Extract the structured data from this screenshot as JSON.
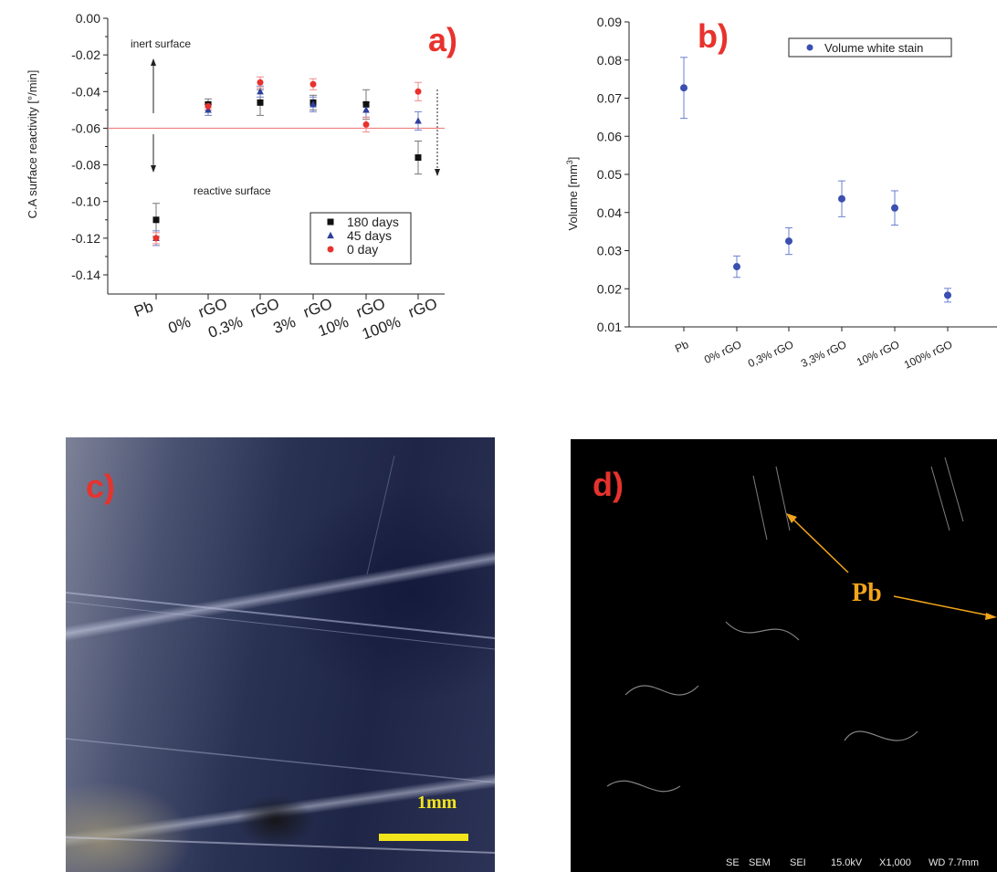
{
  "panels": {
    "a": "a)",
    "b": "b)",
    "c": "c)",
    "d": "d)"
  },
  "chart_data": [
    {
      "type": "scatter",
      "ylabel": "C.A surface reactivity [°/min]",
      "ylim": [
        -0.14,
        0.0
      ],
      "yticks": [
        "0.00",
        "-0.02",
        "-0.04",
        "-0.06",
        "-0.08",
        "-0.10",
        "-0.12",
        "-0.14"
      ],
      "categories": [
        "Pb",
        "0% rGO",
        "0.3% rGO",
        "3% rGO",
        "10% rGO",
        "100% rGO"
      ],
      "series": [
        {
          "name": "180 days",
          "color": "#111111",
          "marker": "square",
          "values": [
            -0.11,
            -0.047,
            -0.046,
            -0.046,
            -0.047,
            -0.076
          ],
          "errors": [
            0.009,
            0.003,
            0.007,
            0.004,
            0.008,
            0.009
          ]
        },
        {
          "name": "45 days",
          "color": "#2e3f9e",
          "marker": "triangle",
          "values": [
            -0.12,
            -0.05,
            -0.04,
            -0.047,
            -0.05,
            -0.056
          ],
          "errors": [
            0.004,
            0.003,
            0.003,
            0.004,
            0.004,
            0.005
          ]
        },
        {
          "name": "0 day",
          "color": "#e8322d",
          "marker": "circle",
          "values": [
            -0.12,
            -0.048,
            -0.035,
            -0.036,
            -0.058,
            -0.04
          ],
          "errors": [
            0.003,
            0.002,
            0.003,
            0.003,
            0.004,
            0.005
          ]
        }
      ],
      "threshold": -0.06,
      "threshold_color": "#f08080",
      "annotations": [
        "inert surface",
        "reactive surface"
      ],
      "legend_position": "lower-right"
    },
    {
      "type": "scatter",
      "ylabel": "Volume [mm",
      "ylabel_superscript": "3",
      "ylabel_close": "]",
      "ylim": [
        0.01,
        0.09
      ],
      "yticks": [
        "0.09",
        "0.08",
        "0.07",
        "0.06",
        "0.05",
        "0.04",
        "0.03",
        "0.02",
        "0.01"
      ],
      "categories": [
        "Pb",
        "0% rGO",
        "0,3% rGO",
        "3,3% rGO",
        "10% rGO",
        "100% rGO"
      ],
      "series": [
        {
          "name": "Volume white stain",
          "color": "#3a4fb0",
          "marker": "circle",
          "values": [
            0.0727,
            0.0258,
            0.0325,
            0.0436,
            0.0412,
            0.0183
          ],
          "errors": [
            0.008,
            0.0028,
            0.0035,
            0.0047,
            0.0045,
            0.0018
          ]
        }
      ],
      "legend_position": "top-right"
    }
  ],
  "photo_c": {
    "scale_label": "1mm",
    "scale_color": "#f2e51c"
  },
  "photo_d": {
    "label": "Pb",
    "label_color": "#f2a51c",
    "info_bar": [
      "SE",
      "SEM",
      "SEI",
      "15.0kV",
      "X1,000",
      "WD 7.7mm"
    ]
  }
}
